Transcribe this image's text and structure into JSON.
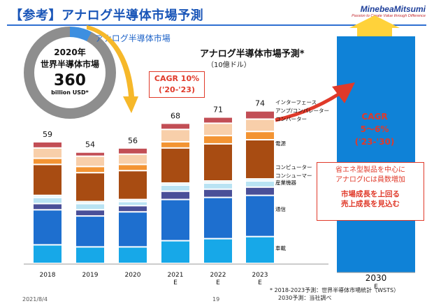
{
  "header": {
    "title": "【参考】アナログ半導体市場予測",
    "logo": "MinebeaMitsumi",
    "logo_tagline": "Passion to Create Value through Difference"
  },
  "donut": {
    "year": "2020年",
    "label": "世界半導体市場",
    "value": "360",
    "unit": "billion USD*",
    "segment_label": "アナログ半導体市場"
  },
  "chart_title": "アナログ半導体市場予測*",
  "chart_subtitle": "（10億ドル）",
  "cagr_short": {
    "line1": "CAGR 10%",
    "line2": "('20-'23)"
  },
  "cagr_long": {
    "line1": "CAGR",
    "line2": "5～6%",
    "line3": "('23-'30)"
  },
  "note_box": {
    "line1": "省エネ型製品を中心に",
    "line2": "アナログICは員数増加",
    "line3": "市場成長を上回る",
    "line4": "売上成長を見込む"
  },
  "footnote": {
    "line1": "* 2018-2023予測：世界半導体市場統計（WSTS）",
    "line2": "2030予測：当社調べ"
  },
  "footer": {
    "date": "2021/8/4",
    "page": "19"
  },
  "colors": {
    "title": "#1a56b8",
    "auto": "#17a8e8",
    "comm": "#1e6fcf",
    "industrial": "#4a4f98",
    "consumer": "#b9e3f3",
    "computer": "#d9f0f8",
    "power": "#a84c12",
    "converter": "#f39433",
    "amp": "#f8cfaa",
    "interface": "#c24e55",
    "projection": "#0f82d7",
    "accent": "#e03a2a"
  },
  "chart_data": {
    "type": "bar",
    "stacked": true,
    "unit": "10億ドル",
    "categories": [
      "2018",
      "2019",
      "2020",
      "2021\nE",
      "2022\nE",
      "2023\nE"
    ],
    "totals": [
      59,
      54,
      56,
      68,
      71,
      74
    ],
    "series": [
      {
        "name": "車載",
        "color_key": "auto",
        "values": [
          9,
          8,
          8,
          11,
          12,
          13
        ]
      },
      {
        "name": "通信",
        "color_key": "comm",
        "values": [
          17,
          15,
          17,
          20,
          20,
          20
        ]
      },
      {
        "name": "産業機器",
        "color_key": "industrial",
        "values": [
          3,
          3,
          3,
          4,
          4,
          4
        ]
      },
      {
        "name": "コンシューマー",
        "color_key": "consumer",
        "values": [
          3,
          3,
          2,
          3,
          3,
          3
        ]
      },
      {
        "name": "コンピューター",
        "color_key": "computer",
        "values": [
          1,
          1,
          1,
          1,
          1,
          1
        ]
      },
      {
        "name": "電源",
        "color_key": "power",
        "values": [
          15,
          14,
          14,
          17,
          18,
          19
        ]
      },
      {
        "name": "コンバーター",
        "color_key": "converter",
        "values": [
          3,
          3,
          3,
          3,
          4,
          4
        ]
      },
      {
        "name": "アンプ/コンパレーター",
        "color_key": "amp",
        "values": [
          5,
          5,
          5,
          6,
          6,
          6
        ]
      },
      {
        "name": "インターフェース",
        "color_key": "interface",
        "values": [
          3,
          2,
          3,
          3,
          3,
          4
        ]
      }
    ],
    "projection": {
      "category": "2030\nE"
    }
  }
}
